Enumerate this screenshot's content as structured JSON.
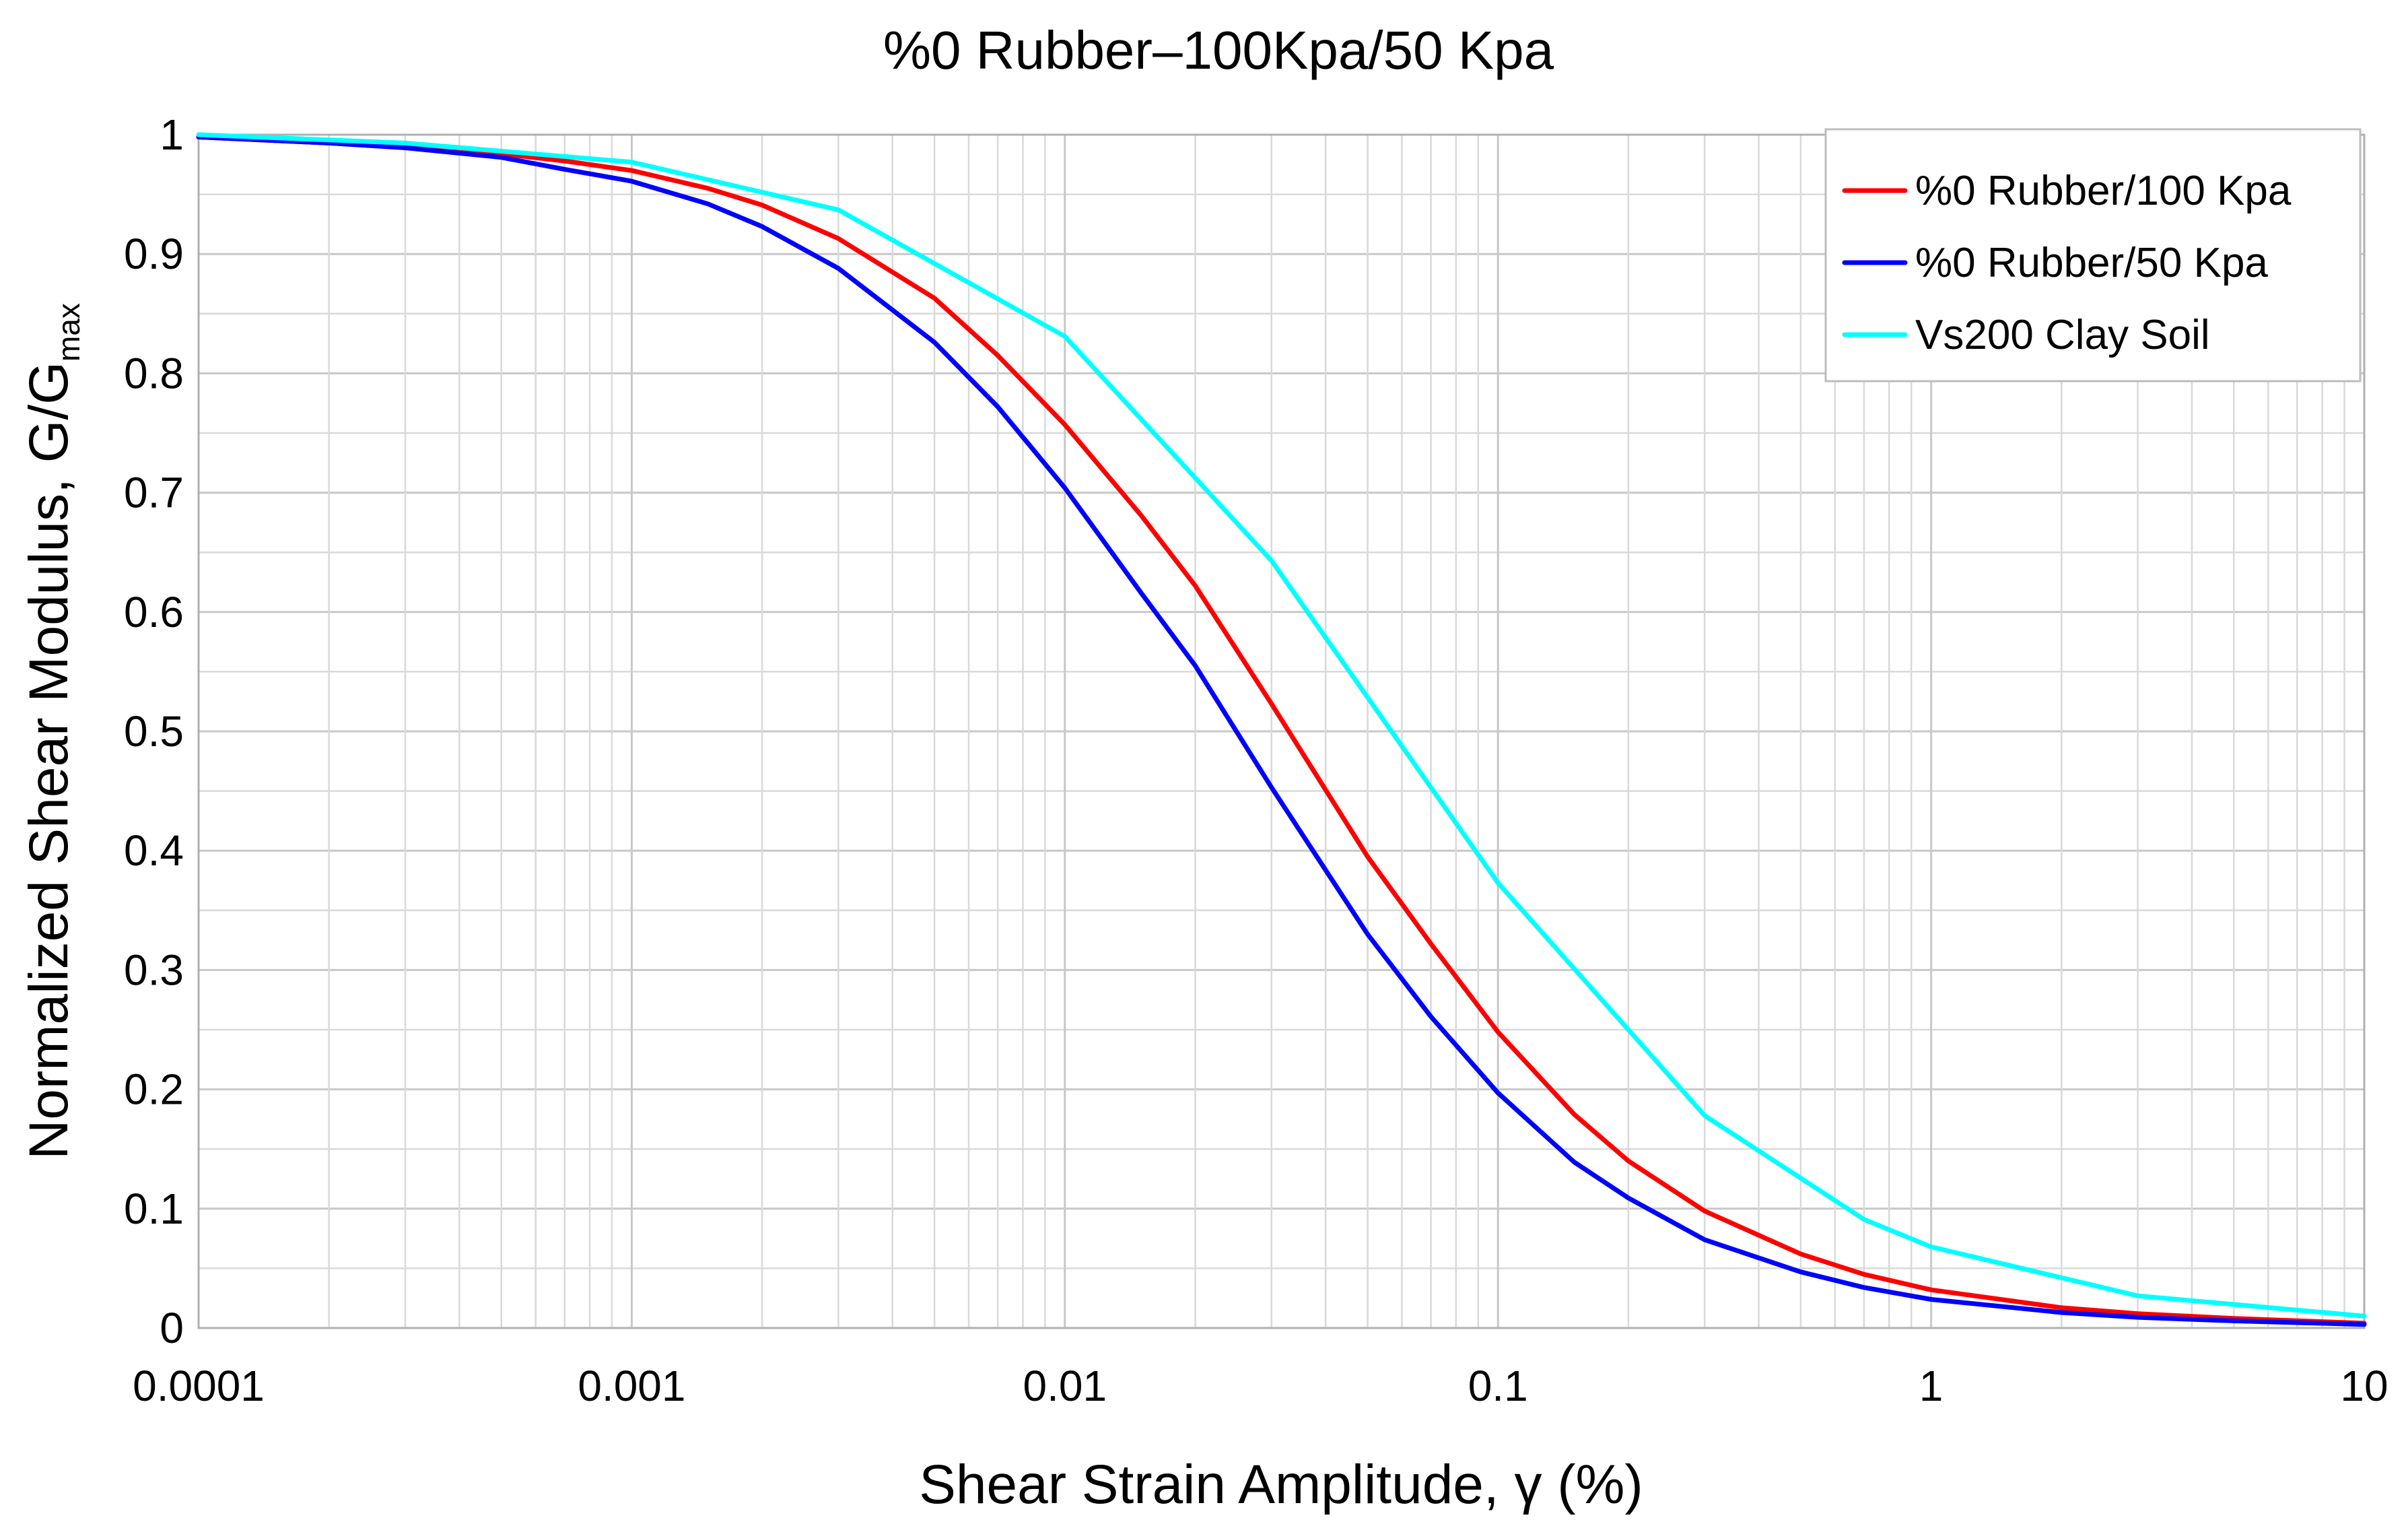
{
  "chart_data": {
    "type": "line",
    "title": "%0 Rubber–100Kpa/50 Kpa",
    "xlabel": "Shear Strain Amplitude, γ (%)",
    "ylabel_main": "Normalized Shear Modulus, G/G",
    "ylabel_sub": "max",
    "xscale": "log",
    "xlim": [
      0.0001,
      10
    ],
    "ylim": [
      0,
      1
    ],
    "grid": true,
    "legend_position": "top-right",
    "x_ticks": [
      {
        "value": 0.0001,
        "label": "0.0001"
      },
      {
        "value": 0.001,
        "label": "0.001"
      },
      {
        "value": 0.01,
        "label": "0.01"
      },
      {
        "value": 0.1,
        "label": "0.1"
      },
      {
        "value": 1,
        "label": "1"
      },
      {
        "value": 10,
        "label": "10"
      }
    ],
    "y_ticks": [
      {
        "value": 0,
        "label": "0"
      },
      {
        "value": 0.1,
        "label": "0.1"
      },
      {
        "value": 0.2,
        "label": "0.2"
      },
      {
        "value": 0.3,
        "label": "0.3"
      },
      {
        "value": 0.4,
        "label": "0.4"
      },
      {
        "value": 0.5,
        "label": "0.5"
      },
      {
        "value": 0.6,
        "label": "0.6"
      },
      {
        "value": 0.7,
        "label": "0.7"
      },
      {
        "value": 0.8,
        "label": "0.8"
      },
      {
        "value": 0.9,
        "label": "0.9"
      },
      {
        "value": 1,
        "label": "1"
      }
    ],
    "series": [
      {
        "name": "%0 Rubber/100 Kpa",
        "color": "#ff0000",
        "x": [
          0.0001,
          0.0002,
          0.0003,
          0.0005,
          0.0007,
          0.001,
          0.0015,
          0.002,
          0.003,
          0.005,
          0.007,
          0.01,
          0.015,
          0.02,
          0.03,
          0.05,
          0.07,
          0.1,
          0.15,
          0.2,
          0.3,
          0.5,
          0.7,
          1,
          2,
          3,
          5,
          10
        ],
        "y": [
          0.998,
          0.993,
          0.99,
          0.984,
          0.978,
          0.97,
          0.955,
          0.941,
          0.913,
          0.863,
          0.815,
          0.757,
          0.681,
          0.622,
          0.523,
          0.395,
          0.322,
          0.248,
          0.179,
          0.14,
          0.098,
          0.062,
          0.045,
          0.032,
          0.017,
          0.012,
          0.008,
          0.004
        ]
      },
      {
        "name": "%0 Rubber/50 Kpa",
        "color": "#0000ff",
        "x": [
          0.0001,
          0.0002,
          0.0003,
          0.0005,
          0.0007,
          0.001,
          0.0015,
          0.002,
          0.003,
          0.005,
          0.007,
          0.01,
          0.015,
          0.02,
          0.03,
          0.05,
          0.07,
          0.1,
          0.15,
          0.2,
          0.3,
          0.5,
          0.7,
          1,
          2,
          3,
          5,
          10
        ],
        "y": [
          0.998,
          0.993,
          0.989,
          0.981,
          0.971,
          0.961,
          0.942,
          0.923,
          0.888,
          0.826,
          0.772,
          0.704,
          0.616,
          0.555,
          0.453,
          0.33,
          0.261,
          0.197,
          0.139,
          0.109,
          0.074,
          0.047,
          0.034,
          0.024,
          0.013,
          0.009,
          0.006,
          0.003
        ]
      },
      {
        "name": "Vs200 Clay Soil",
        "color": "#00ffff",
        "x": [
          0.0001,
          0.0003,
          0.001,
          0.003,
          0.01,
          0.03,
          0.1,
          0.3,
          0.7,
          1,
          3,
          10
        ],
        "y": [
          1.0,
          0.993,
          0.977,
          0.937,
          0.831,
          0.643,
          0.373,
          0.178,
          0.091,
          0.068,
          0.027,
          0.01
        ]
      }
    ]
  }
}
